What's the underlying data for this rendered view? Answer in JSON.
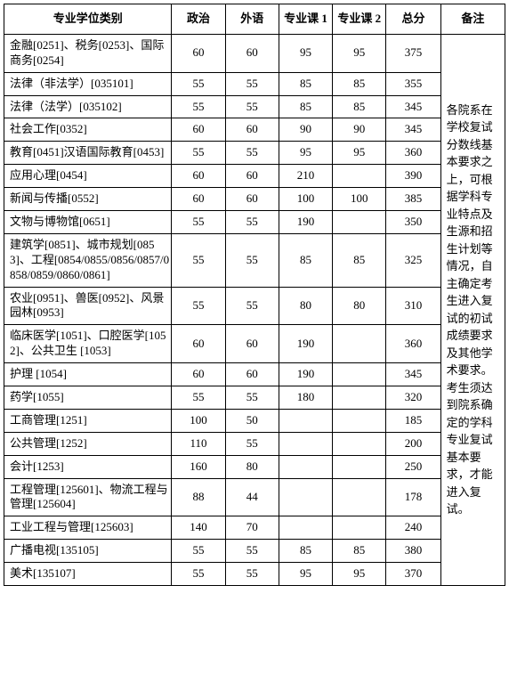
{
  "headers": {
    "category": "专业学位类别",
    "politics": "政治",
    "foreign": "外语",
    "course1": "专业课 1",
    "course2": "专业课 2",
    "total": "总分",
    "remark": "备注"
  },
  "remark_text": "各院系在学校复试分数线基本要求之上，可根据学科专业特点及生源和招生计划等情况，自主确定考生进入复试的初试成绩要求及其他学术要求。考生须达到院系确定的学科专业复试基本要求，才能进入复试。",
  "rows": [
    {
      "category": "金融[0251]、税务[0253]、国际商务[0254]",
      "politics": "60",
      "foreign": "60",
      "course1": "95",
      "course2": "95",
      "total": "375"
    },
    {
      "category": "法律（非法学）[035101]",
      "politics": "55",
      "foreign": "55",
      "course1": "85",
      "course2": "85",
      "total": "355"
    },
    {
      "category": "法律（法学）[035102]",
      "politics": "55",
      "foreign": "55",
      "course1": "85",
      "course2": "85",
      "total": "345"
    },
    {
      "category": "社会工作[0352]",
      "politics": "60",
      "foreign": "60",
      "course1": "90",
      "course2": "90",
      "total": "345"
    },
    {
      "category": "教育[0451]汉语国际教育[0453]",
      "politics": "55",
      "foreign": "55",
      "course1": "95",
      "course2": "95",
      "total": "360"
    },
    {
      "category": "应用心理[0454]",
      "politics": "60",
      "foreign": "60",
      "course1": "210",
      "course2": "",
      "total": "390"
    },
    {
      "category": "新闻与传播[0552]",
      "politics": "60",
      "foreign": "60",
      "course1": "100",
      "course2": "100",
      "total": "385"
    },
    {
      "category": "文物与博物馆[0651]",
      "politics": "55",
      "foreign": "55",
      "course1": "190",
      "course2": "",
      "total": "350"
    },
    {
      "category": "建筑学[0851]、城市规划[0853]、工程[0854/0855/0856/0857/0858/0859/0860/0861]",
      "politics": "55",
      "foreign": "55",
      "course1": "85",
      "course2": "85",
      "total": "325"
    },
    {
      "category": "农业[0951]、兽医[0952]、风景园林[0953]",
      "politics": "55",
      "foreign": "55",
      "course1": "80",
      "course2": "80",
      "total": "310"
    },
    {
      "category": "临床医学[1051]、口腔医学[1052]、公共卫生 [1053]",
      "politics": "60",
      "foreign": "60",
      "course1": "190",
      "course2": "",
      "total": "360"
    },
    {
      "category": "护理 [1054]",
      "politics": "60",
      "foreign": "60",
      "course1": "190",
      "course2": "",
      "total": "345"
    },
    {
      "category": "药学[1055]",
      "politics": "55",
      "foreign": "55",
      "course1": "180",
      "course2": "",
      "total": "320"
    },
    {
      "category": "工商管理[1251]",
      "politics": "100",
      "foreign": "50",
      "course1": "",
      "course2": "",
      "total": "185"
    },
    {
      "category": "公共管理[1252]",
      "politics": "110",
      "foreign": "55",
      "course1": "",
      "course2": "",
      "total": "200"
    },
    {
      "category": "会计[1253]",
      "politics": "160",
      "foreign": "80",
      "course1": "",
      "course2": "",
      "total": "250"
    },
    {
      "category": "工程管理[125601]、物流工程与管理[125604]",
      "politics": "88",
      "foreign": "44",
      "course1": "",
      "course2": "",
      "total": "178"
    },
    {
      "category": "工业工程与管理[125603]",
      "politics": "140",
      "foreign": "70",
      "course1": "",
      "course2": "",
      "total": "240"
    },
    {
      "category": "广播电视[135105]",
      "politics": "55",
      "foreign": "55",
      "course1": "85",
      "course2": "85",
      "total": "380"
    },
    {
      "category": "美术[135107]",
      "politics": "55",
      "foreign": "55",
      "course1": "95",
      "course2": "95",
      "total": "370"
    }
  ]
}
